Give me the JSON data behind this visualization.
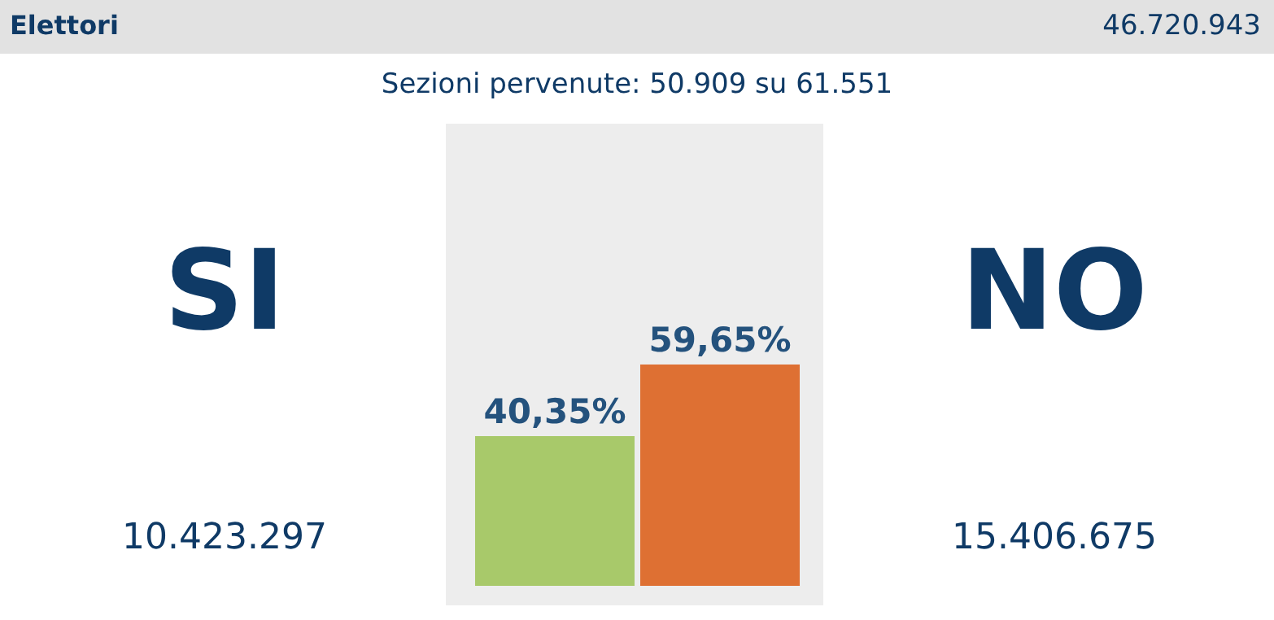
{
  "chart_data": {
    "type": "bar",
    "title": "Elettori",
    "subtitle": "Sezioni pervenute: 50.909 su 61.551",
    "categories": [
      "SI",
      "NO"
    ],
    "values": [
      40.35,
      59.65
    ],
    "colors": [
      "#a8c96a",
      "#de7033"
    ],
    "value_labels": [
      "40,35%",
      "59,65%"
    ],
    "annotations": [
      "46.720.943",
      "10.423.297",
      "15.406.675"
    ],
    "tick_labels": false,
    "grid": false,
    "legend": false
  }
}
